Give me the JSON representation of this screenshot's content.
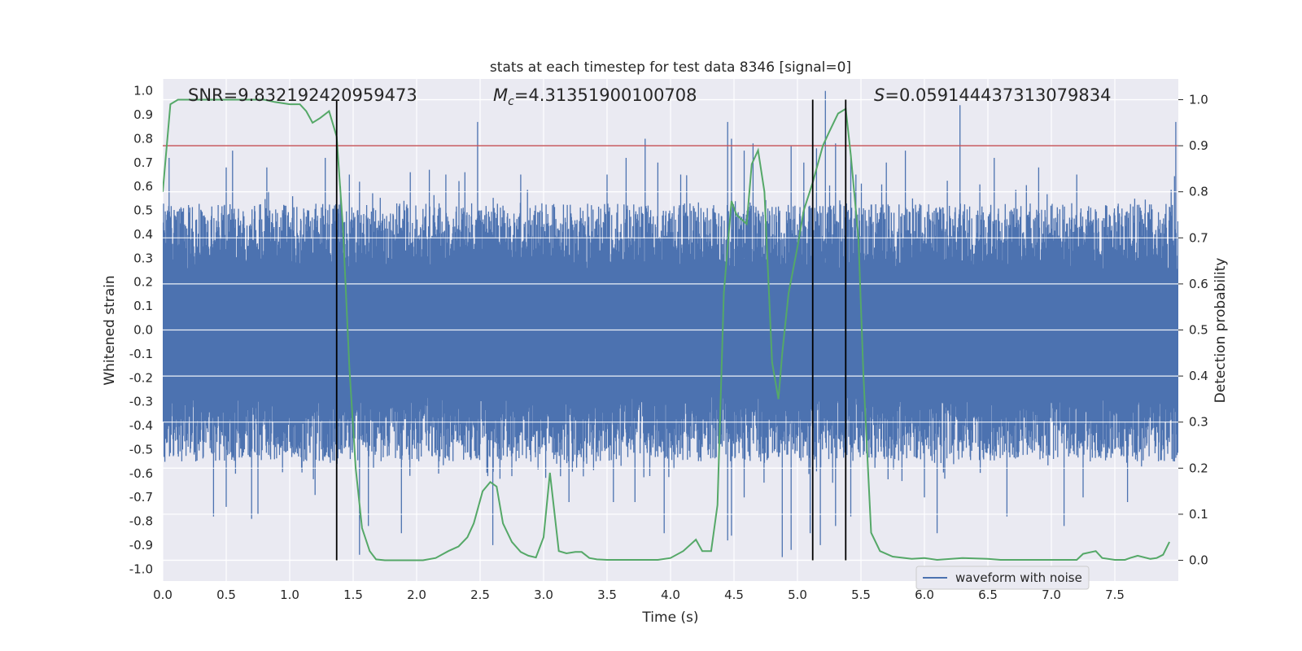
{
  "chart_data": {
    "type": "line",
    "title": "stats at each timestep for test data 8346 [signal=0]",
    "xlabel": "Time (s)",
    "ylabel": "Whitened strain",
    "y2label": "Detection probability",
    "xlim": [
      0.0,
      8.0
    ],
    "ylim": [
      -1.05,
      1.05
    ],
    "y2lim": [
      -0.045,
      1.045
    ],
    "xticks": [
      "0.0",
      "0.5",
      "1.0",
      "1.5",
      "2.0",
      "2.5",
      "3.0",
      "3.5",
      "4.0",
      "4.5",
      "5.0",
      "5.5",
      "6.0",
      "6.5",
      "7.0",
      "7.5"
    ],
    "yticks": [
      "1.0",
      "0.9",
      "0.8",
      "0.7",
      "0.6",
      "0.5",
      "0.4",
      "0.3",
      "0.2",
      "0.1",
      "0.0",
      "-0.1",
      "-0.2",
      "-0.3",
      "-0.4",
      "-0.5",
      "-0.6",
      "-0.7",
      "-0.8",
      "-0.9",
      "-1.0"
    ],
    "y2ticks": [
      "1.0",
      "0.9",
      "0.8",
      "0.7",
      "0.6",
      "0.5",
      "0.4",
      "0.3",
      "0.2",
      "0.1",
      "0.0"
    ],
    "grid": true,
    "legend_placement": "lower-right",
    "annotations": {
      "snr": "SNR=9.832192420959473",
      "mc_prefix": "M",
      "mc_sub": "c",
      "mc_value": "=4.31351900100708",
      "s_prefix": "S",
      "s_value": "=0.059144437313079834"
    },
    "threshold": {
      "value": 0.9,
      "axis": "y2",
      "color": "#c44e52"
    },
    "vertical_lines": [
      1.37,
      5.12,
      5.38
    ],
    "vertical_line_range_y2": [
      0.0,
      1.0
    ],
    "series": [
      {
        "name": "waveform with noise",
        "axis": "y",
        "color": "#4c72b0",
        "kind": "noise-envelope",
        "spikes_upper": [
          [
            0.05,
            0.72
          ],
          [
            0.5,
            0.68
          ],
          [
            0.55,
            0.75
          ],
          [
            0.82,
            0.68
          ],
          [
            1.28,
            0.72
          ],
          [
            1.4,
            0.6
          ],
          [
            1.47,
            0.65
          ],
          [
            1.55,
            0.62
          ],
          [
            1.95,
            0.66
          ],
          [
            2.1,
            0.67
          ],
          [
            2.23,
            0.65
          ],
          [
            2.38,
            0.66
          ],
          [
            2.48,
            0.87
          ],
          [
            2.82,
            0.65
          ],
          [
            3.5,
            0.65
          ],
          [
            3.65,
            0.72
          ],
          [
            3.8,
            0.8
          ],
          [
            3.9,
            0.7
          ],
          [
            4.08,
            0.65
          ],
          [
            4.45,
            0.87
          ],
          [
            4.48,
            0.8
          ],
          [
            4.58,
            0.75
          ],
          [
            4.65,
            0.78
          ],
          [
            4.95,
            0.77
          ],
          [
            5.05,
            0.7
          ],
          [
            5.15,
            0.76
          ],
          [
            5.22,
            1.0
          ],
          [
            5.3,
            0.78
          ],
          [
            5.42,
            0.72
          ],
          [
            5.46,
            0.65
          ],
          [
            5.7,
            0.7
          ],
          [
            5.85,
            0.75
          ],
          [
            6.28,
            0.94
          ],
          [
            6.55,
            0.72
          ],
          [
            6.9,
            0.68
          ],
          [
            7.2,
            0.65
          ],
          [
            7.98,
            0.87
          ]
        ],
        "spikes_lower": [
          [
            0.4,
            -0.78
          ],
          [
            0.5,
            -0.74
          ],
          [
            0.7,
            -0.79
          ],
          [
            0.75,
            -0.77
          ],
          [
            1.2,
            -0.69
          ],
          [
            1.55,
            -0.94
          ],
          [
            1.62,
            -0.82
          ],
          [
            1.88,
            -0.85
          ],
          [
            2.6,
            -0.9
          ],
          [
            3.2,
            -0.72
          ],
          [
            3.55,
            -0.72
          ],
          [
            3.72,
            -0.72
          ],
          [
            3.95,
            -0.85
          ],
          [
            4.45,
            -0.88
          ],
          [
            4.48,
            -0.86
          ],
          [
            4.58,
            -0.7
          ],
          [
            4.88,
            -0.95
          ],
          [
            4.95,
            -0.92
          ],
          [
            5.1,
            -0.85
          ],
          [
            5.18,
            -0.9
          ],
          [
            5.3,
            -0.82
          ],
          [
            5.42,
            -0.78
          ],
          [
            6.0,
            -0.7
          ],
          [
            6.1,
            -0.85
          ],
          [
            6.65,
            -0.78
          ],
          [
            7.1,
            -0.82
          ],
          [
            7.25,
            -0.7
          ],
          [
            7.6,
            -0.72
          ]
        ]
      },
      {
        "name": "",
        "axis": "y2",
        "color": "#55a868",
        "kind": "line",
        "x": [
          0.0,
          0.06,
          0.12,
          0.3,
          0.55,
          0.8,
          0.88,
          1.0,
          1.08,
          1.13,
          1.18,
          1.24,
          1.31,
          1.37,
          1.42,
          1.47,
          1.52,
          1.57,
          1.63,
          1.68,
          1.75,
          1.9,
          2.05,
          2.15,
          2.25,
          2.33,
          2.4,
          2.45,
          2.52,
          2.58,
          2.63,
          2.68,
          2.75,
          2.82,
          2.88,
          2.94,
          3.0,
          3.05,
          3.12,
          3.18,
          3.25,
          3.3,
          3.36,
          3.42,
          3.5,
          3.7,
          3.9,
          4.0,
          4.1,
          4.2,
          4.25,
          4.32,
          4.37,
          4.42,
          4.48,
          4.52,
          4.6,
          4.64,
          4.69,
          4.74,
          4.8,
          4.85,
          4.88,
          4.93,
          5.0,
          5.05,
          5.12,
          5.2,
          5.25,
          5.32,
          5.38,
          5.42,
          5.48,
          5.52,
          5.58,
          5.65,
          5.75,
          5.9,
          6.0,
          6.1,
          6.3,
          6.5,
          6.6,
          6.9,
          7.2,
          7.25,
          7.35,
          7.4,
          7.5,
          7.58,
          7.62,
          7.68,
          7.78,
          7.83,
          7.88,
          7.93
        ],
        "y": [
          0.8,
          0.99,
          1.0,
          1.0,
          1.0,
          1.0,
          0.995,
          0.99,
          0.99,
          0.975,
          0.95,
          0.96,
          0.975,
          0.92,
          0.72,
          0.42,
          0.2,
          0.07,
          0.02,
          0.002,
          0.0,
          0.0,
          0.0,
          0.005,
          0.02,
          0.03,
          0.05,
          0.08,
          0.15,
          0.17,
          0.16,
          0.08,
          0.04,
          0.018,
          0.01,
          0.006,
          0.05,
          0.19,
          0.02,
          0.015,
          0.018,
          0.018,
          0.005,
          0.002,
          0.001,
          0.001,
          0.001,
          0.005,
          0.02,
          0.045,
          0.02,
          0.02,
          0.12,
          0.58,
          0.78,
          0.75,
          0.73,
          0.86,
          0.89,
          0.8,
          0.43,
          0.35,
          0.45,
          0.58,
          0.68,
          0.76,
          0.82,
          0.9,
          0.93,
          0.97,
          0.98,
          0.88,
          0.7,
          0.4,
          0.06,
          0.02,
          0.008,
          0.003,
          0.005,
          0.001,
          0.005,
          0.003,
          0.001,
          0.001,
          0.001,
          0.014,
          0.02,
          0.005,
          0.001,
          0.001,
          0.005,
          0.01,
          0.003,
          0.005,
          0.012,
          0.04
        ]
      }
    ]
  }
}
